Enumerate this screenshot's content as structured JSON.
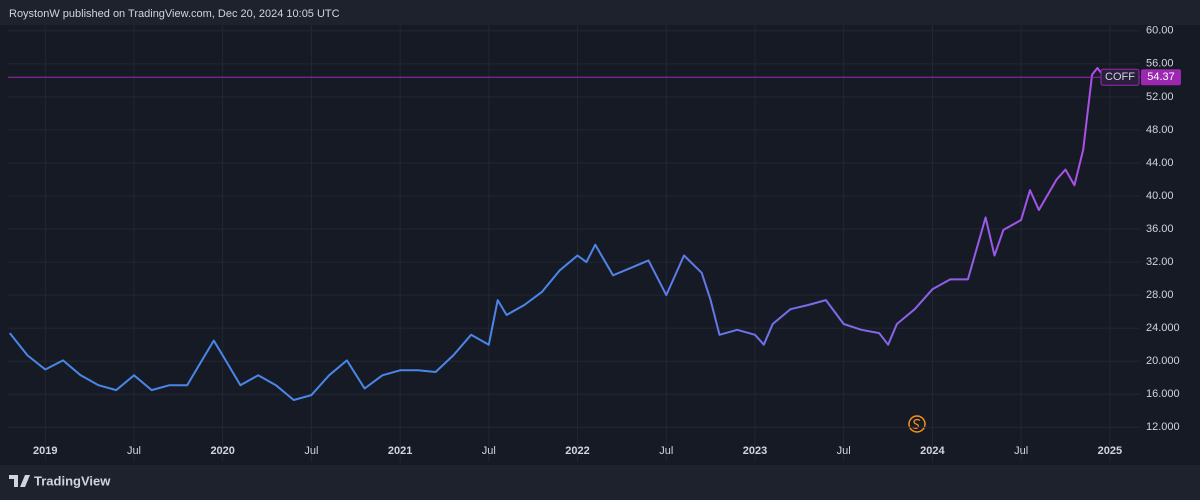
{
  "header": {
    "title": "RoystonW published on TradingView.com, Dec 20, 2024 10:05 UTC"
  },
  "footer": {
    "brand": "TradingView"
  },
  "chart_data": {
    "type": "line",
    "x": [
      2018.8,
      2018.9,
      2019.0,
      2019.1,
      2019.2,
      2019.3,
      2019.4,
      2019.5,
      2019.6,
      2019.7,
      2019.8,
      2019.9,
      2019.95,
      2020.0,
      2020.1,
      2020.2,
      2020.3,
      2020.4,
      2020.5,
      2020.6,
      2020.7,
      2020.8,
      2020.9,
      2021.0,
      2021.1,
      2021.2,
      2021.3,
      2021.4,
      2021.5,
      2021.55,
      2021.6,
      2021.7,
      2021.8,
      2021.9,
      2022.0,
      2022.05,
      2022.1,
      2022.2,
      2022.3,
      2022.4,
      2022.5,
      2022.6,
      2022.7,
      2022.75,
      2022.8,
      2022.9,
      2023.0,
      2023.05,
      2023.1,
      2023.2,
      2023.3,
      2023.4,
      2023.5,
      2023.6,
      2023.7,
      2023.75,
      2023.8,
      2023.9,
      2024.0,
      2024.1,
      2024.2,
      2024.3,
      2024.35,
      2024.4,
      2024.5,
      2024.55,
      2024.6,
      2024.7,
      2024.75,
      2024.8,
      2024.85,
      2024.9,
      2024.93,
      2024.97
    ],
    "series": [
      {
        "name": "COFF",
        "colors": [
          "#4a86e8",
          "#4a86e8",
          "#b64ae8"
        ],
        "values": [
          23.4,
          20.7,
          19.0,
          20.1,
          18.3,
          17.1,
          16.5,
          18.3,
          16.5,
          17.1,
          17.1,
          20.7,
          22.5,
          20.7,
          17.1,
          18.3,
          17.1,
          15.3,
          15.9,
          18.3,
          20.1,
          16.7,
          18.3,
          18.9,
          18.9,
          18.7,
          20.7,
          23.2,
          22.0,
          27.4,
          25.6,
          26.8,
          28.4,
          31.0,
          32.8,
          32.0,
          34.1,
          30.4,
          31.3,
          32.2,
          28.0,
          32.8,
          30.7,
          27.4,
          23.2,
          23.8,
          23.2,
          22.0,
          24.5,
          26.3,
          26.8,
          27.4,
          24.5,
          23.8,
          23.4,
          22.0,
          24.5,
          26.3,
          28.7,
          29.9,
          29.9,
          37.4,
          32.8,
          35.9,
          37.1,
          40.7,
          38.3,
          42.0,
          43.2,
          41.3,
          45.6,
          54.7,
          55.5,
          54.37
        ]
      }
    ],
    "last_value": 54.37,
    "xlim": [
      2018.79,
      2025.17
    ],
    "xticks": [
      {
        "value": 2019,
        "label": "2019"
      },
      {
        "value": 2019.5,
        "label": "Jul"
      },
      {
        "value": 2020,
        "label": "2020"
      },
      {
        "value": 2020.5,
        "label": "Jul"
      },
      {
        "value": 2021,
        "label": "2021"
      },
      {
        "value": 2021.5,
        "label": "Jul"
      },
      {
        "value": 2022,
        "label": "2022"
      },
      {
        "value": 2022.5,
        "label": "Jul"
      },
      {
        "value": 2023,
        "label": "2023"
      },
      {
        "value": 2023.5,
        "label": "Jul"
      },
      {
        "value": 2024,
        "label": "2024"
      },
      {
        "value": 2024.5,
        "label": "Jul"
      },
      {
        "value": 2025,
        "label": "2025"
      }
    ],
    "ylim": [
      7.8,
      60.7
    ],
    "yticks": [
      {
        "value": 60,
        "label": "60.00"
      },
      {
        "value": 56,
        "label": "56.00"
      },
      {
        "value": 52,
        "label": "52.00"
      },
      {
        "value": 48,
        "label": "48.00"
      },
      {
        "value": 44,
        "label": "44.00"
      },
      {
        "value": 40,
        "label": "40.00"
      },
      {
        "value": 36,
        "label": "36.00"
      },
      {
        "value": 32,
        "label": "32.00"
      },
      {
        "value": 28,
        "label": "28.00"
      },
      {
        "value": 24,
        "label": "24.000"
      },
      {
        "value": 20,
        "label": "20.000"
      },
      {
        "value": 16,
        "label": "16.000"
      },
      {
        "value": 12,
        "label": "12.000"
      }
    ],
    "grid": true,
    "last_line_color": "#9c27b0"
  }
}
